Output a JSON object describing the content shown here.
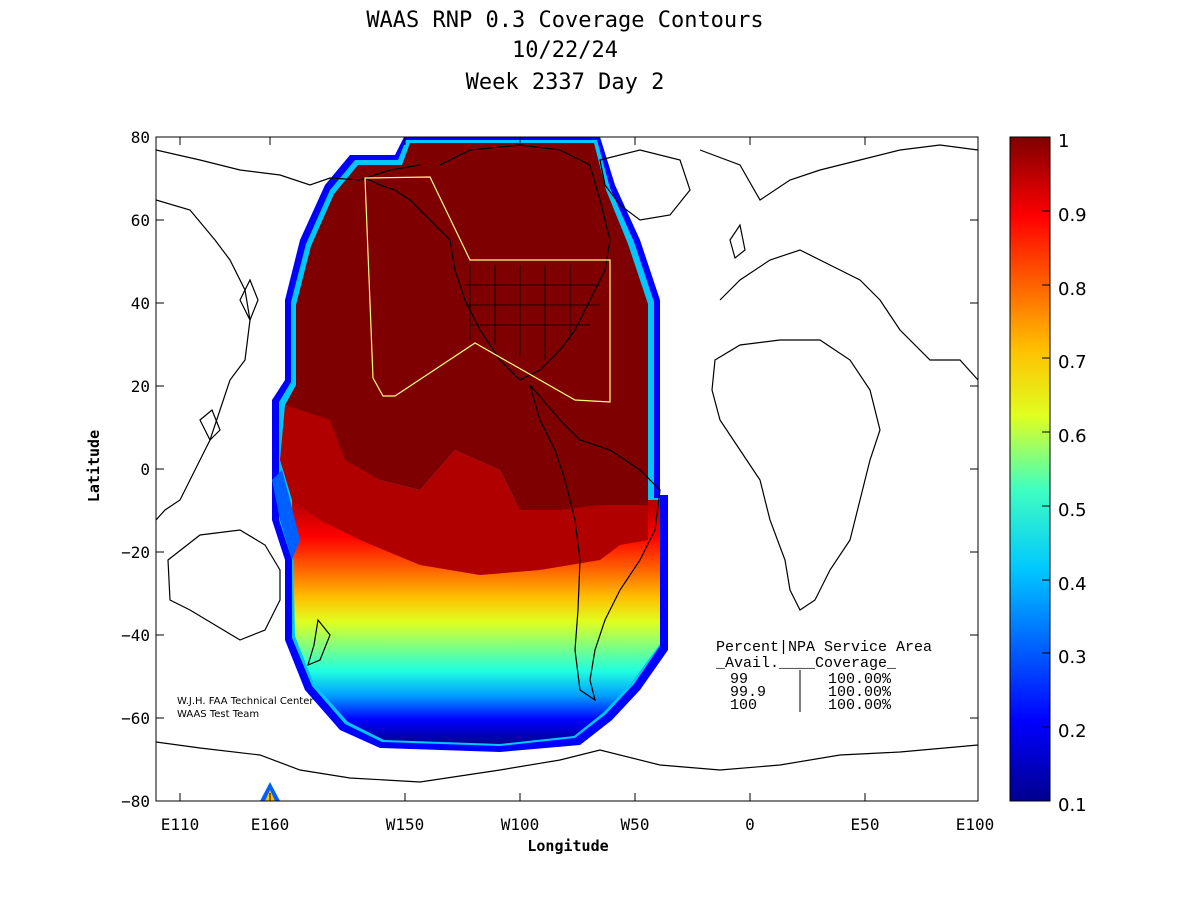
{
  "title": {
    "line1": "WAAS RNP 0.3 Coverage Contours",
    "line2": "10/22/24",
    "line3": "Week 2337 Day 2"
  },
  "axes": {
    "xlabel": "Longitude",
    "ylabel": "Latitude",
    "x_ticks": [
      "E110",
      "E160",
      "W150",
      "W100",
      "W50",
      "0",
      "E50",
      "E100"
    ],
    "y_ticks": [
      "80",
      "60",
      "40",
      "20",
      "0",
      "−20",
      "−40",
      "−60",
      "−80"
    ]
  },
  "colorbar": {
    "ticks": [
      "1",
      "0.9",
      "0.8",
      "0.7",
      "0.6",
      "0.5",
      "0.4",
      "0.3",
      "0.2",
      "0.1"
    ],
    "colors": [
      "#00008f",
      "#0000ff",
      "#0060ff",
      "#00c0ff",
      "#20ffe0",
      "#80ff80",
      "#e0ff20",
      "#ffc000",
      "#ff6000",
      "#ff0000",
      "#b00000",
      "#7f0000"
    ]
  },
  "credit": {
    "line1": "W.J.H. FAA Technical Center",
    "line2": "WAAS Test Team"
  },
  "table": {
    "header1": "Percent|NPA Service Area",
    "header2": "_Avail.____Coverage_",
    "rows": [
      {
        "avail": "99",
        "coverage": "100.00%"
      },
      {
        "avail": "99.9",
        "coverage": "100.00%"
      },
      {
        "avail": "100",
        "coverage": "100.00%"
      }
    ]
  },
  "colors": {
    "land_outline": "#000000",
    "service_area": "#ffff80",
    "max_coverage": "#7f0000"
  }
}
